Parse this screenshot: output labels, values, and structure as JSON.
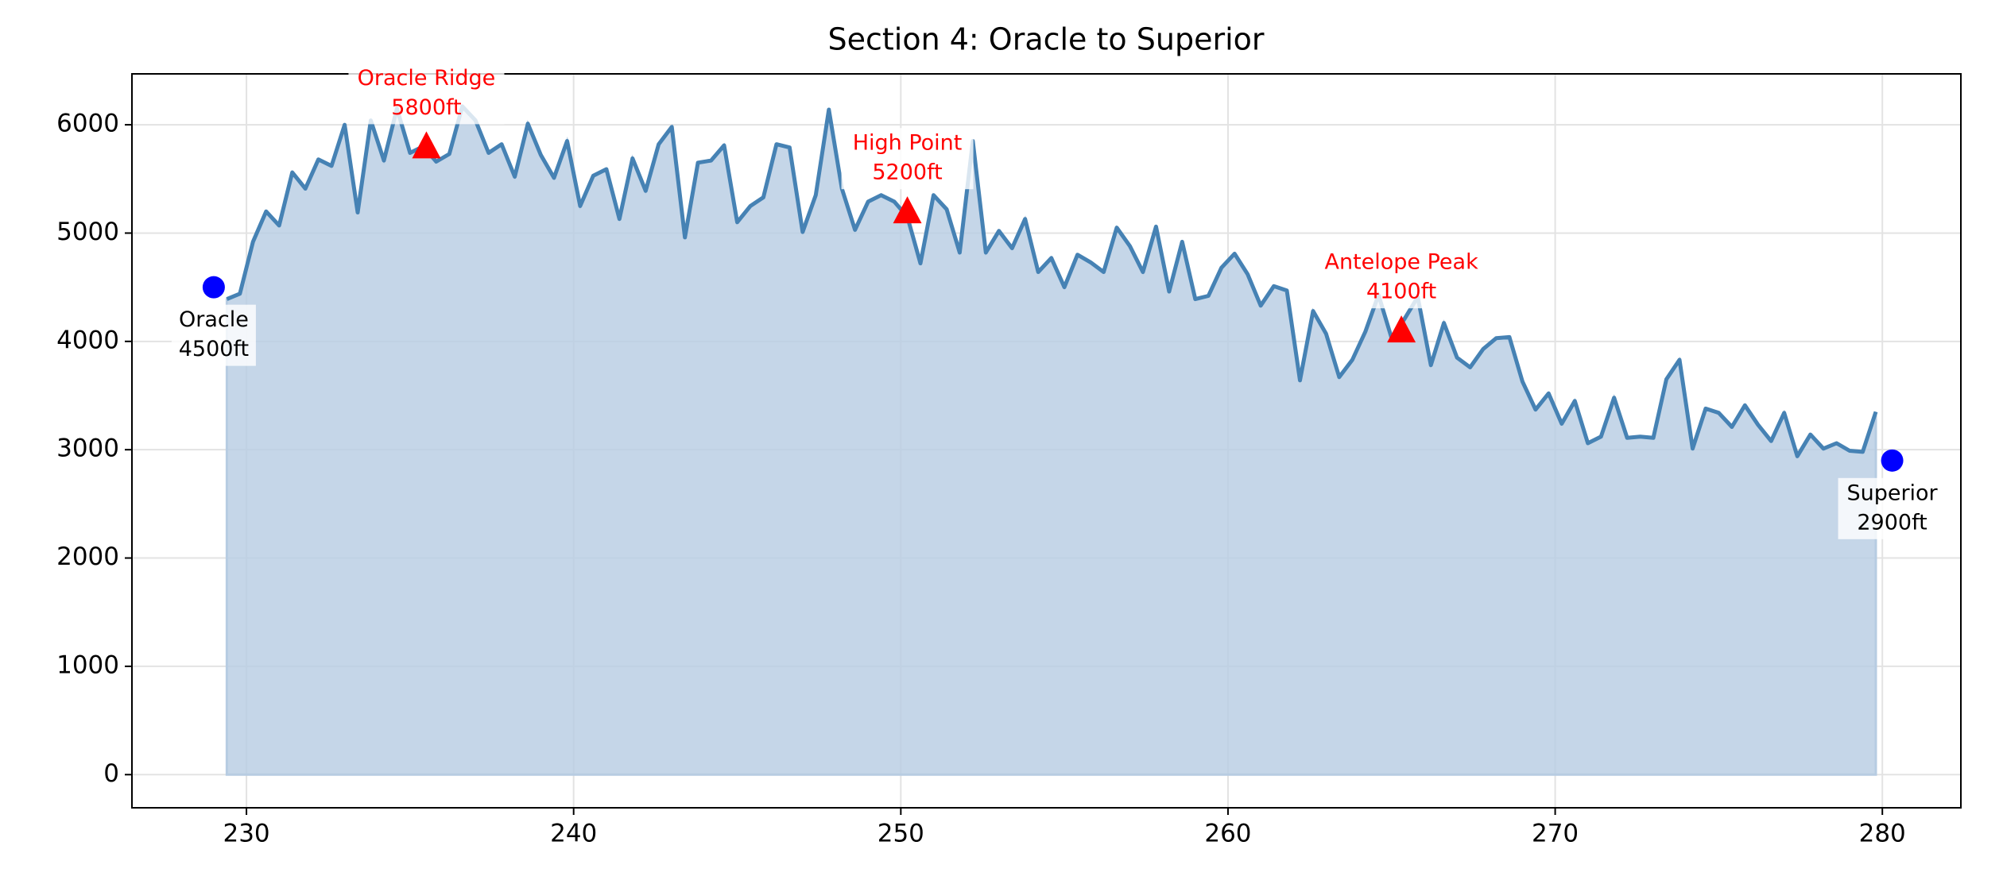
{
  "chart_data": {
    "type": "area",
    "title": "Section 4: Oracle to Superior",
    "x": [
      229.4,
      229.8,
      230.2,
      230.6,
      231.0,
      231.4,
      231.8,
      232.2,
      232.6,
      233.0,
      233.4,
      233.8,
      234.2,
      234.6,
      235.0,
      235.4,
      235.8,
      236.2,
      236.6,
      237.0,
      237.4,
      237.8,
      238.2,
      238.6,
      239.0,
      239.4,
      239.8,
      240.2,
      240.6,
      241.0,
      241.4,
      241.8,
      242.2,
      242.6,
      243.0,
      243.4,
      243.8,
      244.2,
      244.6,
      245.0,
      245.4,
      245.8,
      246.2,
      246.6,
      247.0,
      247.4,
      247.8,
      248.2,
      248.6,
      249.0,
      249.4,
      249.8,
      250.2,
      250.6,
      251.0,
      251.4,
      251.8,
      252.2,
      252.6,
      253.0,
      253.4,
      253.8,
      254.2,
      254.6,
      255.0,
      255.4,
      255.8,
      256.2,
      256.6,
      257.0,
      257.4,
      257.8,
      258.2,
      258.6,
      259.0,
      259.4,
      259.8,
      260.2,
      260.6,
      261.0,
      261.4,
      261.8,
      262.2,
      262.6,
      263.0,
      263.4,
      263.8,
      264.2,
      264.6,
      265.0,
      265.4,
      265.8,
      266.2,
      266.6,
      267.0,
      267.4,
      267.8,
      268.2,
      268.6,
      269.0,
      269.4,
      269.8,
      270.2,
      270.6,
      271.0,
      271.4,
      271.8,
      272.2,
      272.6,
      273.0,
      273.4,
      273.8,
      274.2,
      274.6,
      275.0,
      275.4,
      275.8,
      276.2,
      276.6,
      277.0,
      277.4,
      277.8,
      278.2,
      278.6,
      279.0,
      279.4,
      279.8
    ],
    "series": [
      {
        "color": "#4682b4",
        "fill_color": "#b7cce2",
        "values": [
          4390,
          4440,
          4920,
          5200,
          5070,
          5560,
          5410,
          5680,
          5620,
          6000,
          5190,
          6040,
          5670,
          6150,
          5740,
          5800,
          5660,
          5730,
          6170,
          6040,
          5740,
          5820,
          5520,
          6010,
          5720,
          5510,
          5850,
          5250,
          5530,
          5590,
          5130,
          5690,
          5390,
          5820,
          5980,
          4960,
          5650,
          5670,
          5810,
          5100,
          5250,
          5330,
          5820,
          5790,
          5010,
          5350,
          6140,
          5410,
          5030,
          5290,
          5350,
          5290,
          5150,
          4720,
          5350,
          5220,
          4820,
          5850,
          4820,
          5020,
          4860,
          5130,
          4640,
          4770,
          4500,
          4800,
          4730,
          4640,
          5050,
          4880,
          4640,
          5060,
          4460,
          4920,
          4390,
          4420,
          4680,
          4810,
          4620,
          4330,
          4510,
          4470,
          3640,
          4280,
          4070,
          3670,
          3830,
          4090,
          4430,
          4030,
          4210,
          4410,
          3780,
          4170,
          3850,
          3760,
          3930,
          4030,
          4040,
          3630,
          3370,
          3520,
          3240,
          3450,
          3060,
          3120,
          3480,
          3110,
          3120,
          3110,
          3650,
          3830,
          3010,
          3380,
          3340,
          3210,
          3410,
          3230,
          3080,
          3340,
          2940,
          3140,
          3010,
          3060,
          2990,
          2980,
          3350
        ]
      }
    ],
    "waypoints": [
      {
        "label_lines": [
          "Oracle",
          "4500ft"
        ],
        "x": 229.0,
        "y": 4500,
        "color": "#0000ff",
        "marker": "circle",
        "label_position": "below",
        "label_color": "#000000"
      },
      {
        "label_lines": [
          "Oracle Ridge",
          "5800ft"
        ],
        "x": 235.5,
        "y": 5800,
        "color": "#ff0000",
        "marker": "triangle",
        "label_position": "above",
        "label_color": "#ff0000"
      },
      {
        "label_lines": [
          "High Point",
          "5200ft"
        ],
        "x": 250.2,
        "y": 5200,
        "color": "#ff0000",
        "marker": "triangle",
        "label_position": "above",
        "label_color": "#ff0000"
      },
      {
        "label_lines": [
          "Antelope Peak",
          "4100ft"
        ],
        "x": 265.3,
        "y": 4100,
        "color": "#ff0000",
        "marker": "triangle",
        "label_position": "above",
        "label_color": "#ff0000"
      },
      {
        "label_lines": [
          "Superior",
          "2900ft"
        ],
        "x": 280.3,
        "y": 2900,
        "color": "#0000ff",
        "marker": "circle",
        "label_position": "below",
        "label_color": "#000000"
      }
    ],
    "xlim": [
      226.5,
      282.4
    ],
    "ylim": [
      -306,
      6470
    ],
    "xticks": [
      230,
      240,
      250,
      260,
      270,
      280
    ],
    "yticks": [
      0,
      1000,
      2000,
      3000,
      4000,
      5000,
      6000
    ],
    "grid": true
  }
}
